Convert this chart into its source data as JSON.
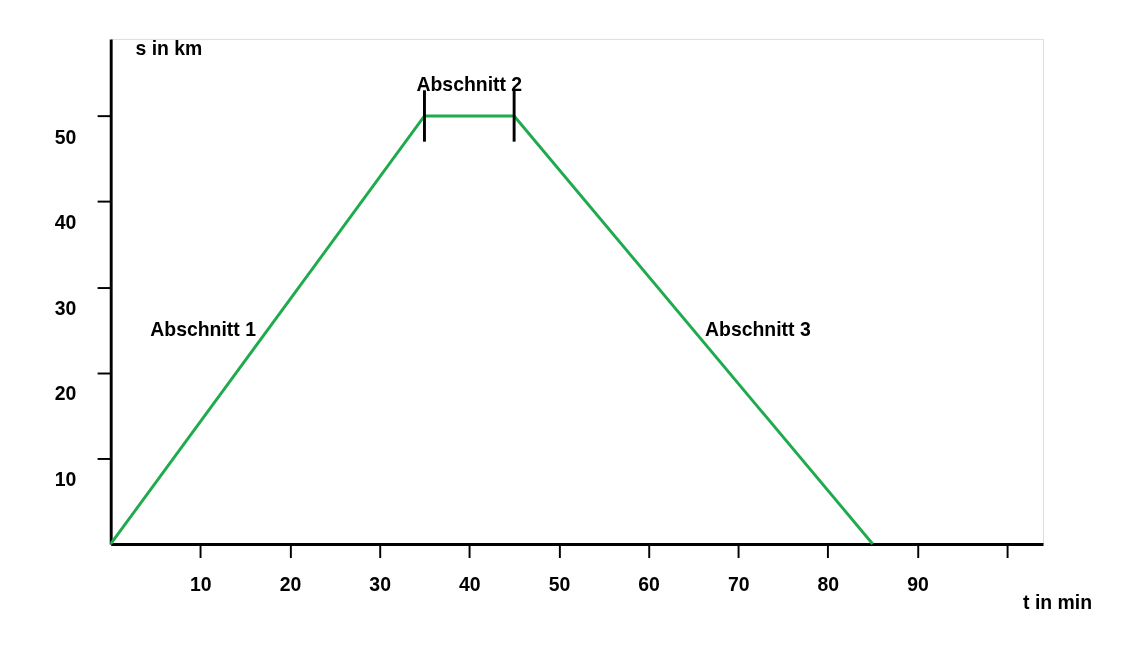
{
  "chart_data": {
    "type": "line",
    "xlabel": "t in min",
    "ylabel": "s in km",
    "x": [
      0,
      35,
      45,
      85
    ],
    "series": [
      {
        "color": "#1faa4e",
        "values": [
          0,
          50,
          50,
          0
        ]
      }
    ],
    "xlim": [
      0,
      104
    ],
    "ylim": [
      0,
      59
    ],
    "xticks": [
      10,
      20,
      30,
      40,
      50,
      60,
      70,
      80,
      90,
      {
        "value": 100,
        "label": null
      }
    ],
    "yticks": [
      10,
      20,
      30,
      40,
      50
    ],
    "ref_lines": [
      {
        "axis": "x",
        "value": 35,
        "label": null
      },
      {
        "axis": "x",
        "value": 45,
        "label": null
      }
    ],
    "annotations": [
      "Abschnitt 1",
      "Abschnitt 2",
      "Abschnitt 3"
    ],
    "grid": false,
    "marker": "none",
    "line_style": "solid"
  }
}
